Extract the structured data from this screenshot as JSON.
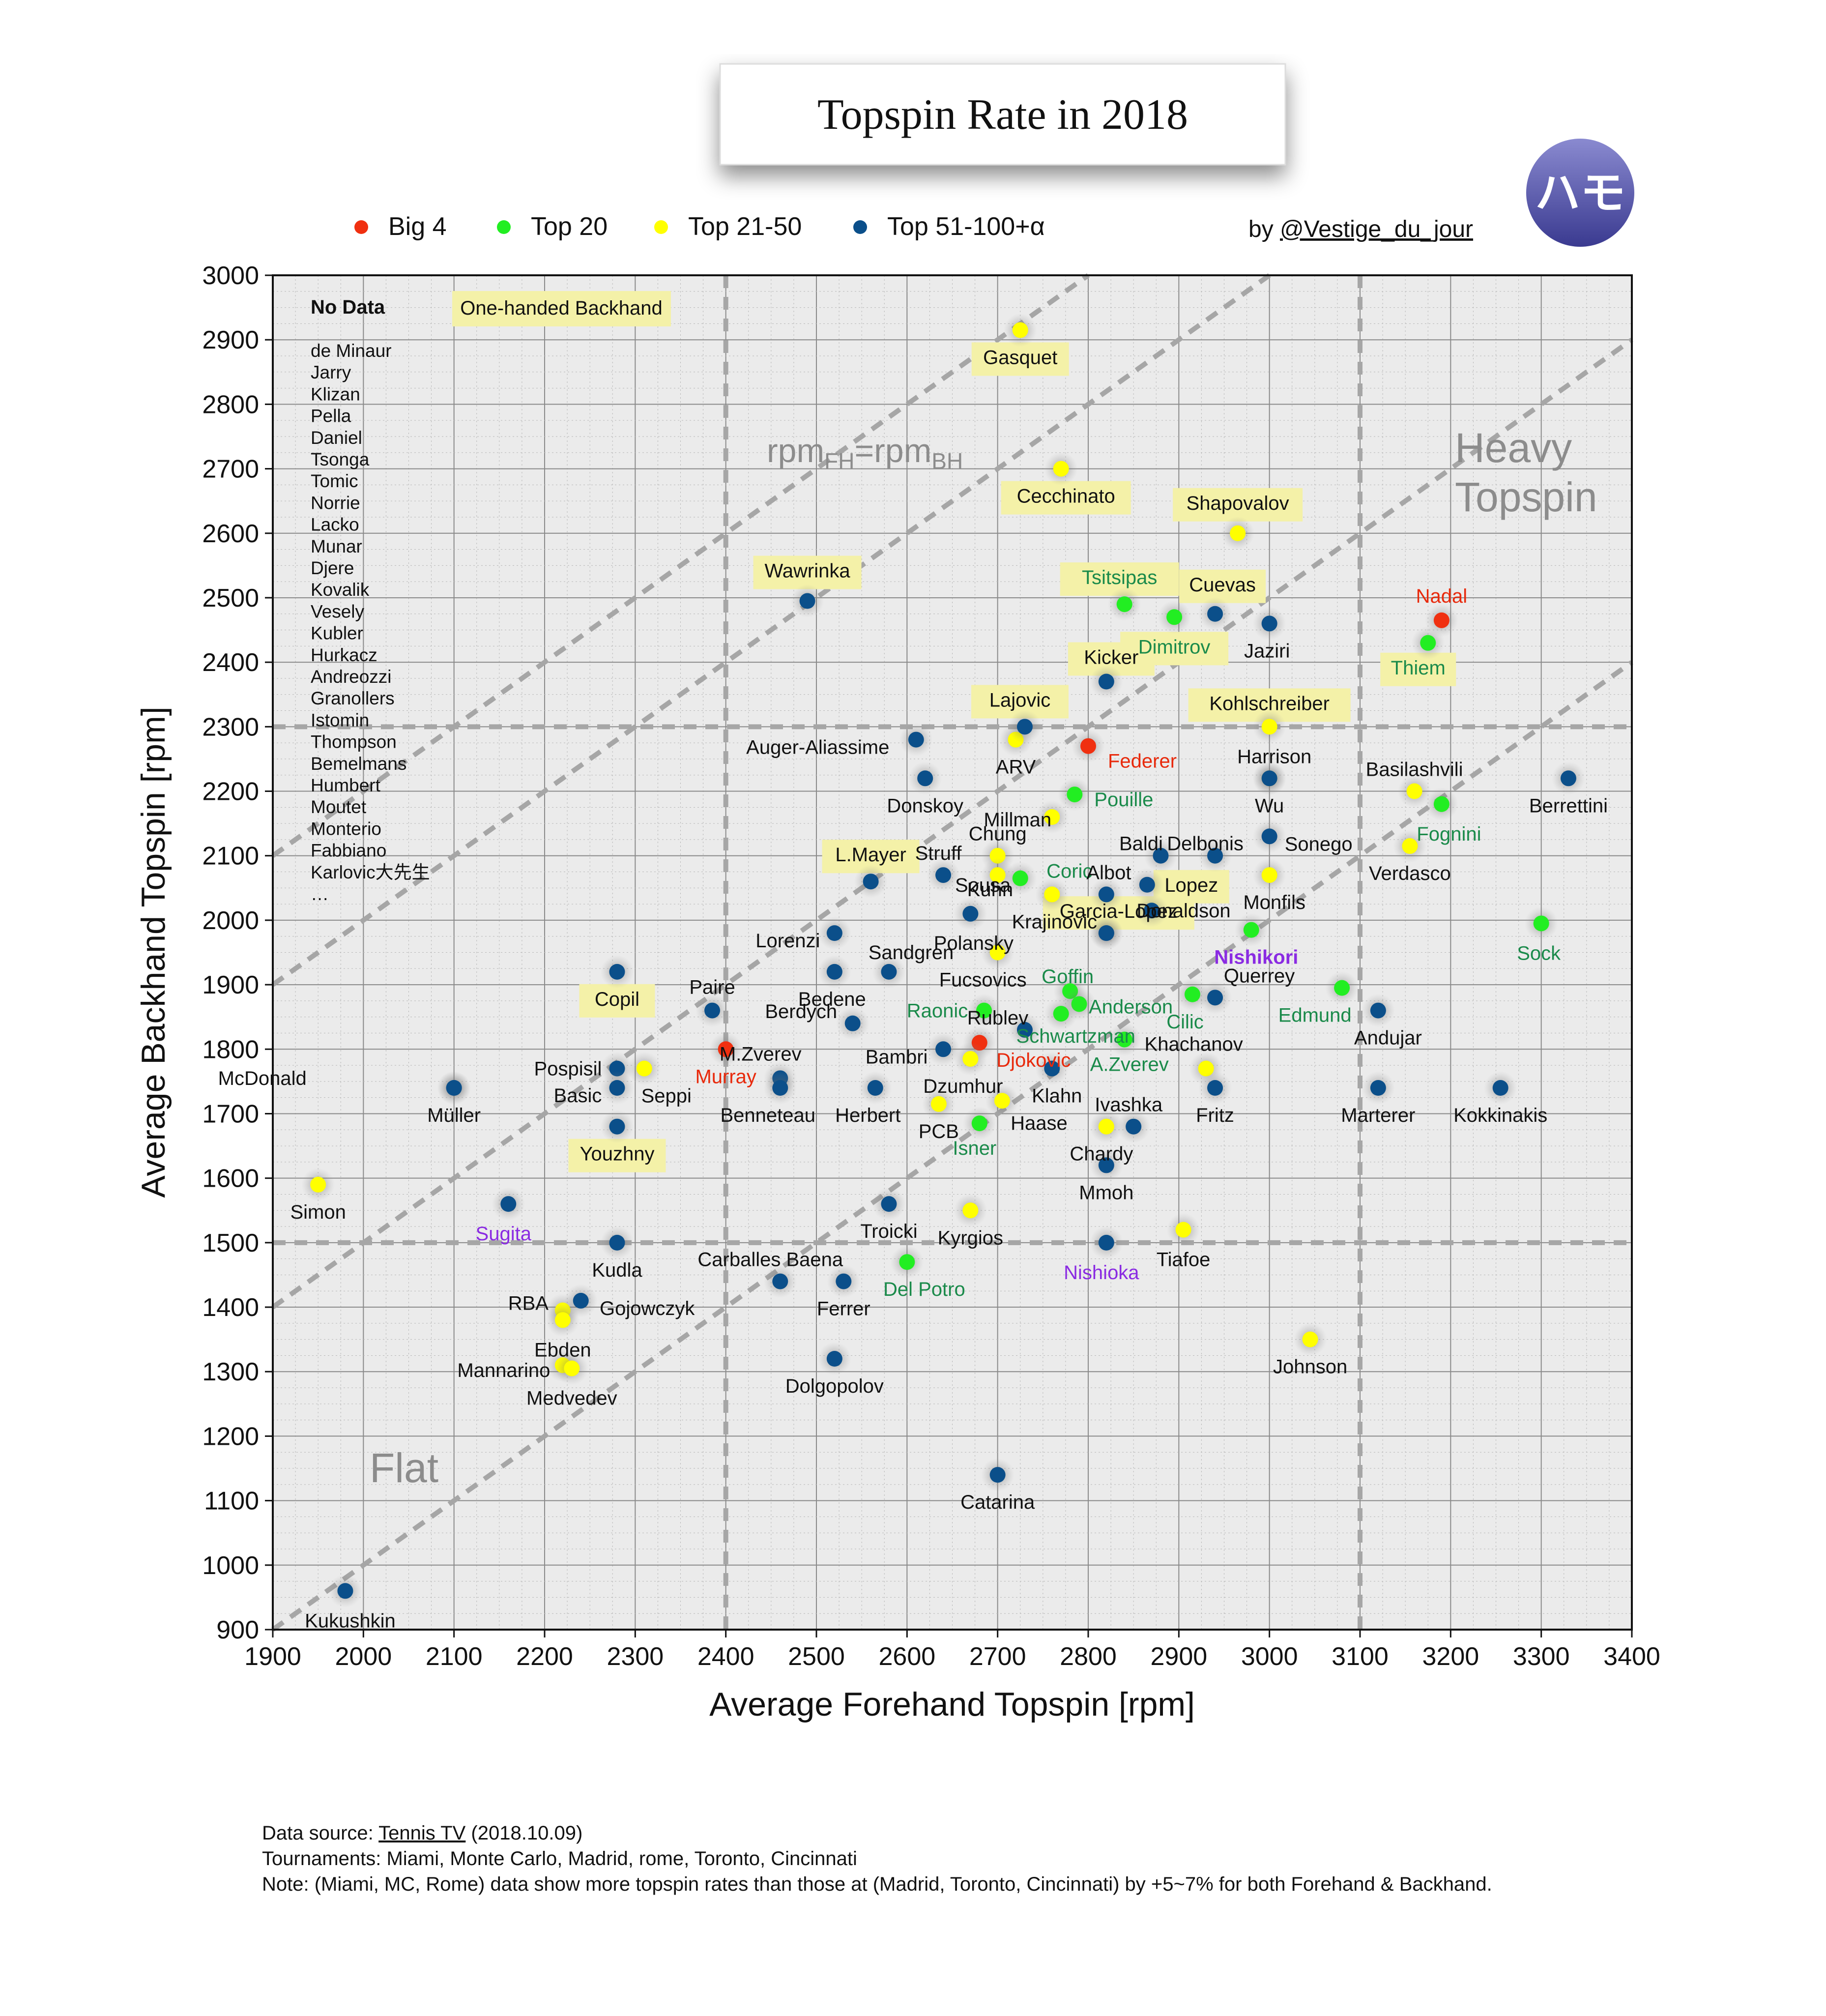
{
  "title": "Topspin Rate in 2018",
  "author": {
    "prefix": "by ",
    "handle": "@Vestige_du_jour"
  },
  "logo_text": "ハモ",
  "legend": [
    {
      "key": "big4",
      "label": "Big 4",
      "color": "#f03010"
    },
    {
      "key": "top20",
      "label": "Top 20",
      "color": "#22ee22"
    },
    {
      "key": "top50",
      "label": "Top 21-50",
      "color": "#ffff00"
    },
    {
      "key": "top100",
      "label": "Top 51-100+α",
      "color": "#0b4f8a"
    }
  ],
  "region_labels": {
    "heavy": [
      "Heavy",
      "Topspin"
    ],
    "flat": "Flat"
  },
  "diagonal_label": {
    "base": "rpm",
    "sub1": "FH",
    "mid": "=rpm",
    "sub2": "BH"
  },
  "one_handed_label": "One-handed Backhand",
  "no_data": {
    "title": "No Data",
    "names": [
      "de Minaur",
      "Jarry",
      "Klizan",
      "Pella",
      "Daniel",
      "Tsonga",
      "Tomic",
      "Norrie",
      "Lacko",
      "Munar",
      "Djere",
      "Kovalik",
      "Vesely",
      "Kubler",
      "Hurkacz",
      "Andreozzi",
      "Granollers",
      "Istomin",
      "Thompson",
      "Bemelmans",
      "Humbert",
      "Moutet",
      "Monterio",
      "Fabbiano",
      "Karlovic大先生",
      "…"
    ]
  },
  "footer": {
    "source_prefix": "Data source: ",
    "source_link": "Tennis TV",
    "source_date": " (2018.10.09)",
    "tournaments": "Tournaments: Miami, Monte Carlo, Madrid, rome, Toronto, Cincinnati",
    "note": "Note: (Miami, MC, Rome) data show more topspin rates than those at (Madrid, Toronto, Cincinnati) by +5~7% for both Forehand & Backhand."
  },
  "chart_data": {
    "type": "scatter",
    "title": "Topspin Rate in 2018",
    "xlabel": "Average Forehand Topspin [rpm]",
    "ylabel": "Average Backhand Topspin [rpm]",
    "xlim": [
      1900,
      3400
    ],
    "ylim": [
      900,
      3000
    ],
    "xticks": [
      1900,
      2000,
      2100,
      2200,
      2300,
      2400,
      2500,
      2600,
      2700,
      2800,
      2900,
      3000,
      3100,
      3200,
      3300,
      3400
    ],
    "yticks": [
      900,
      1000,
      1100,
      1200,
      1300,
      1400,
      1500,
      1600,
      1700,
      1800,
      1900,
      2000,
      2100,
      2200,
      2300,
      2400,
      2500,
      2600,
      2700,
      2800,
      2900,
      3000
    ],
    "grid": true,
    "reference_lines": {
      "vertical": [
        2400,
        3100
      ],
      "horizontal": [
        1500,
        2300
      ],
      "diagonals": [
        "y = x + 200",
        "y = x",
        "y = x - 500",
        "y = x - 1000"
      ]
    },
    "points": [
      {
        "name": "Nadal",
        "x": 3190,
        "y": 2465,
        "group": "big4"
      },
      {
        "name": "Federer",
        "x": 2800,
        "y": 2270,
        "group": "big4"
      },
      {
        "name": "Djokovic",
        "x": 2680,
        "y": 1810,
        "group": "big4"
      },
      {
        "name": "Murray",
        "x": 2400,
        "y": 1800,
        "group": "big4"
      },
      {
        "name": "Thiem",
        "x": 3175,
        "y": 2430,
        "group": "top20",
        "one_handed": true
      },
      {
        "name": "Tsitsipas",
        "x": 2840,
        "y": 2490,
        "group": "top20",
        "one_handed": true
      },
      {
        "name": "Dimitrov",
        "x": 2895,
        "y": 2470,
        "group": "top20",
        "one_handed": true
      },
      {
        "name": "Pouille",
        "x": 2785,
        "y": 2195,
        "group": "top20"
      },
      {
        "name": "Fognini",
        "x": 3190,
        "y": 2180,
        "group": "top20"
      },
      {
        "name": "Coric",
        "x": 2725,
        "y": 2065,
        "group": "top20"
      },
      {
        "name": "Sock",
        "x": 3300,
        "y": 1995,
        "group": "top20"
      },
      {
        "name": "Nishikori",
        "x": 2980,
        "y": 1985,
        "group": "top20"
      },
      {
        "name": "Goffin",
        "x": 2780,
        "y": 1890,
        "group": "top20"
      },
      {
        "name": "Anderson",
        "x": 2790,
        "y": 1870,
        "group": "top20"
      },
      {
        "name": "Raonic",
        "x": 2685,
        "y": 1860,
        "group": "top20"
      },
      {
        "name": "Schwartzman",
        "x": 2770,
        "y": 1855,
        "group": "top20"
      },
      {
        "name": "Cilic",
        "x": 2915,
        "y": 1885,
        "group": "top20"
      },
      {
        "name": "Edmund",
        "x": 3080,
        "y": 1895,
        "group": "top20"
      },
      {
        "name": "A.Zverev",
        "x": 2840,
        "y": 1815,
        "group": "top20"
      },
      {
        "name": "Isner",
        "x": 2680,
        "y": 1685,
        "group": "top20"
      },
      {
        "name": "Del Potro",
        "x": 2600,
        "y": 1470,
        "group": "top20"
      },
      {
        "name": "Gasquet",
        "x": 2725,
        "y": 2915,
        "group": "top50",
        "one_handed": true
      },
      {
        "name": "Cecchinato",
        "x": 2770,
        "y": 2700,
        "group": "top50",
        "one_handed": true
      },
      {
        "name": "Shapovalov",
        "x": 2965,
        "y": 2600,
        "group": "top50",
        "one_handed": true
      },
      {
        "name": "Kohlschreiber",
        "x": 3000,
        "y": 2300,
        "group": "top50",
        "one_handed": true
      },
      {
        "name": "ARV",
        "x": 2720,
        "y": 2280,
        "group": "top50"
      },
      {
        "name": "Wu",
        "x": 3000,
        "y": 2220,
        "group": "top50"
      },
      {
        "name": "Basilashvili",
        "x": 3160,
        "y": 2200,
        "group": "top50"
      },
      {
        "name": "Millman",
        "x": 2760,
        "y": 2160,
        "group": "top50"
      },
      {
        "name": "Chung",
        "x": 2700,
        "y": 2100,
        "group": "top50"
      },
      {
        "name": "Verdasco",
        "x": 3155,
        "y": 2115,
        "group": "top50"
      },
      {
        "name": "Monfils",
        "x": 3000,
        "y": 2070,
        "group": "top50"
      },
      {
        "name": "Sousa",
        "x": 2700,
        "y": 2070,
        "group": "top50"
      },
      {
        "name": "Krajinovic",
        "x": 2760,
        "y": 2040,
        "group": "top50"
      },
      {
        "name": "Fucsovics",
        "x": 2700,
        "y": 1950,
        "group": "top50"
      },
      {
        "name": "Seppi",
        "x": 2310,
        "y": 1770,
        "group": "top50"
      },
      {
        "name": "Dzumhur",
        "x": 2670,
        "y": 1785,
        "group": "top50"
      },
      {
        "name": "Khachanov",
        "x": 2930,
        "y": 1770,
        "group": "top50"
      },
      {
        "name": "PCB",
        "x": 2635,
        "y": 1715,
        "group": "top50"
      },
      {
        "name": "Haase",
        "x": 2705,
        "y": 1720,
        "group": "top50"
      },
      {
        "name": "Chardy",
        "x": 2820,
        "y": 1680,
        "group": "top50"
      },
      {
        "name": "Simon",
        "x": 1950,
        "y": 1590,
        "group": "top50"
      },
      {
        "name": "Kyrgios",
        "x": 2670,
        "y": 1550,
        "group": "top50"
      },
      {
        "name": "Tiafoe",
        "x": 2905,
        "y": 1520,
        "group": "top50"
      },
      {
        "name": "Johnson",
        "x": 3045,
        "y": 1350,
        "group": "top50"
      },
      {
        "name": "RBA",
        "x": 2220,
        "y": 1395,
        "group": "top50"
      },
      {
        "name": "Ebden",
        "x": 2220,
        "y": 1380,
        "group": "top50"
      },
      {
        "name": "Mannarino",
        "x": 2220,
        "y": 1310,
        "group": "top50"
      },
      {
        "name": "Medvedev",
        "x": 2230,
        "y": 1305,
        "group": "top50"
      },
      {
        "name": "Wawrinka",
        "x": 2490,
        "y": 2495,
        "group": "top100",
        "one_handed": true
      },
      {
        "name": "Cuevas",
        "x": 2940,
        "y": 2475,
        "group": "top100",
        "one_handed": true
      },
      {
        "name": "Jaziri",
        "x": 3000,
        "y": 2460,
        "group": "top100"
      },
      {
        "name": "Kicker",
        "x": 2820,
        "y": 2370,
        "group": "top100",
        "one_handed": true
      },
      {
        "name": "Lajovic",
        "x": 2730,
        "y": 2300,
        "group": "top100",
        "one_handed": true
      },
      {
        "name": "Auger-Aliassime",
        "x": 2610,
        "y": 2280,
        "group": "top100"
      },
      {
        "name": "Harrison",
        "x": 3000,
        "y": 2220,
        "group": "top100"
      },
      {
        "name": "Berrettini",
        "x": 3330,
        "y": 2220,
        "group": "top100"
      },
      {
        "name": "Donskoy",
        "x": 2620,
        "y": 2220,
        "group": "top100"
      },
      {
        "name": "Sonego",
        "x": 3000,
        "y": 2130,
        "group": "top100"
      },
      {
        "name": "Baldi",
        "x": 2880,
        "y": 2100,
        "group": "top100"
      },
      {
        "name": "Delbonis",
        "x": 2940,
        "y": 2100,
        "group": "top100"
      },
      {
        "name": "Struff",
        "x": 2640,
        "y": 2070,
        "group": "top100"
      },
      {
        "name": "Lopez",
        "x": 2865,
        "y": 2055,
        "group": "top100",
        "one_handed": true
      },
      {
        "name": "L.Mayer",
        "x": 2560,
        "y": 2060,
        "group": "top100",
        "one_handed": true
      },
      {
        "name": "Kuhn",
        "x": 2670,
        "y": 2010,
        "group": "top100"
      },
      {
        "name": "Albot",
        "x": 2820,
        "y": 2040,
        "group": "top100"
      },
      {
        "name": "Donaldson",
        "x": 2870,
        "y": 2015,
        "group": "top100"
      },
      {
        "name": "Polansky",
        "x": 2820,
        "y": 1980,
        "group": "top100"
      },
      {
        "name": "Garcia-Lopez",
        "x": 2820,
        "y": 1980,
        "group": "top100",
        "one_handed": true
      },
      {
        "name": "Lorenzi",
        "x": 2520,
        "y": 1980,
        "group": "top100"
      },
      {
        "name": "Sandgren",
        "x": 2580,
        "y": 1920,
        "group": "top100"
      },
      {
        "name": "Bedene",
        "x": 2520,
        "y": 1920,
        "group": "top100"
      },
      {
        "name": "Copil",
        "x": 2280,
        "y": 1920,
        "group": "top100",
        "one_handed": true
      },
      {
        "name": "Querrey",
        "x": 2940,
        "y": 1880,
        "group": "top100"
      },
      {
        "name": "Paire",
        "x": 2385,
        "y": 1860,
        "group": "top100"
      },
      {
        "name": "Andujar",
        "x": 3120,
        "y": 1860,
        "group": "top100"
      },
      {
        "name": "Rublev",
        "x": 2730,
        "y": 1830,
        "group": "top100"
      },
      {
        "name": "Berdych",
        "x": 2540,
        "y": 1840,
        "group": "top100"
      },
      {
        "name": "Bambri",
        "x": 2640,
        "y": 1800,
        "group": "top100"
      },
      {
        "name": "M.Zverev",
        "x": 2460,
        "y": 1755,
        "group": "top100"
      },
      {
        "name": "Benneteau",
        "x": 2460,
        "y": 1740,
        "group": "top100"
      },
      {
        "name": "Pospisil",
        "x": 2280,
        "y": 1770,
        "group": "top100"
      },
      {
        "name": "Basic",
        "x": 2280,
        "y": 1740,
        "group": "top100"
      },
      {
        "name": "McDonald",
        "x": 2100,
        "y": 1740,
        "group": "top100"
      },
      {
        "name": "Müller",
        "x": 2100,
        "y": 1740,
        "group": "top100"
      },
      {
        "name": "Klahn",
        "x": 2760,
        "y": 1770,
        "group": "top100"
      },
      {
        "name": "Herbert",
        "x": 2565,
        "y": 1740,
        "group": "top100"
      },
      {
        "name": "Fritz",
        "x": 2940,
        "y": 1740,
        "group": "top100"
      },
      {
        "name": "Marterer",
        "x": 3120,
        "y": 1740,
        "group": "top100"
      },
      {
        "name": "Kokkinakis",
        "x": 3255,
        "y": 1740,
        "group": "top100"
      },
      {
        "name": "Ivashka",
        "x": 2850,
        "y": 1680,
        "group": "top100"
      },
      {
        "name": "Youzhny",
        "x": 2280,
        "y": 1680,
        "group": "top100",
        "one_handed": true
      },
      {
        "name": "Mmoh",
        "x": 2820,
        "y": 1620,
        "group": "top100"
      },
      {
        "name": "Troicki",
        "x": 2580,
        "y": 1560,
        "group": "top100"
      },
      {
        "name": "Sugita",
        "x": 2160,
        "y": 1560,
        "group": "top100"
      },
      {
        "name": "Nishioka",
        "x": 2820,
        "y": 1500,
        "group": "top100"
      },
      {
        "name": "Kudla",
        "x": 2280,
        "y": 1500,
        "group": "top100"
      },
      {
        "name": "Carballes Baena",
        "x": 2460,
        "y": 1440,
        "group": "top100"
      },
      {
        "name": "Ferrer",
        "x": 2530,
        "y": 1440,
        "group": "top100"
      },
      {
        "name": "Gojowczyk",
        "x": 2240,
        "y": 1410,
        "group": "top100"
      },
      {
        "name": "Dolgopolov",
        "x": 2520,
        "y": 1320,
        "group": "top100"
      },
      {
        "name": "Catarina",
        "x": 2700,
        "y": 1140,
        "group": "top100"
      },
      {
        "name": "Kukushkin",
        "x": 1980,
        "y": 960,
        "group": "top100"
      }
    ]
  }
}
